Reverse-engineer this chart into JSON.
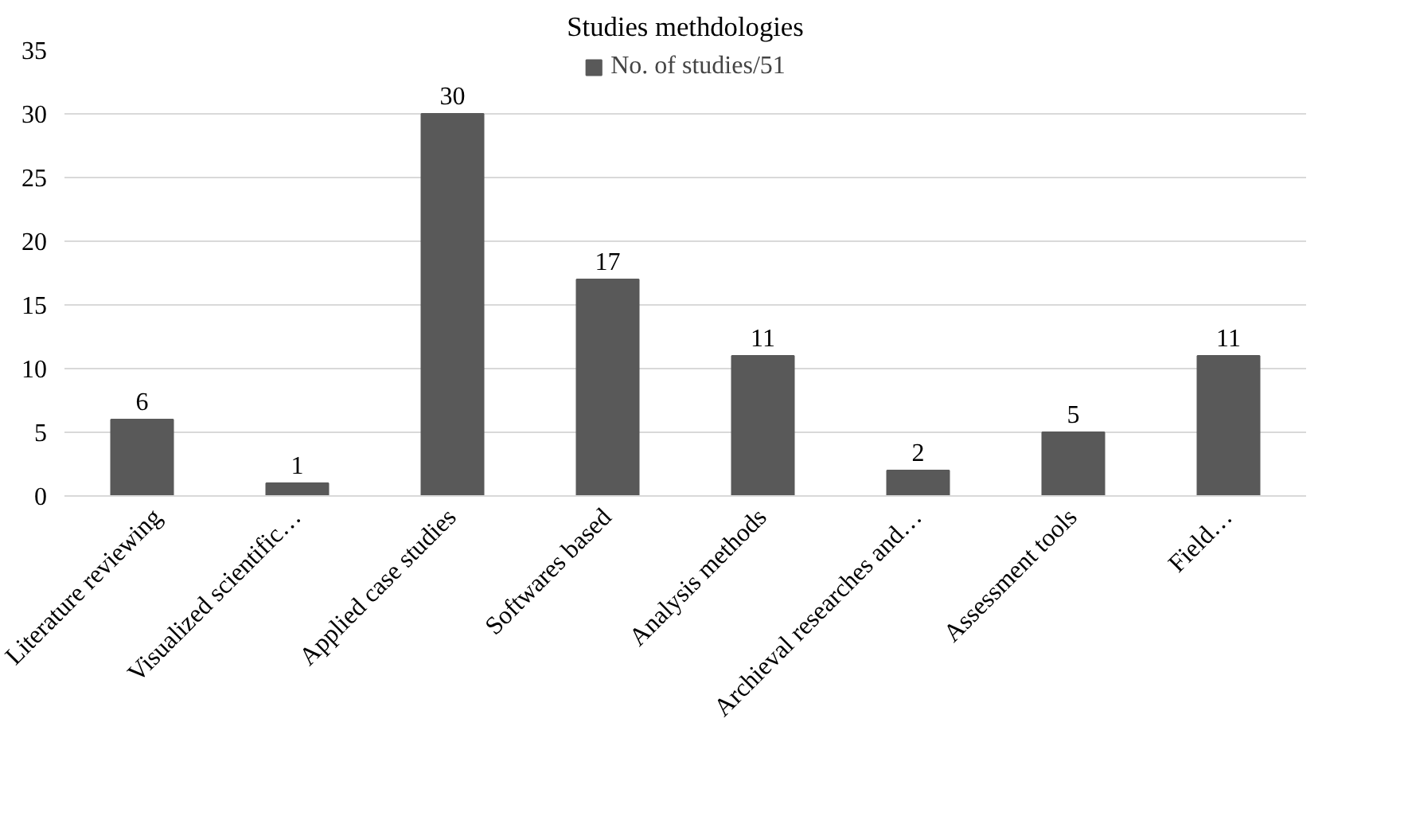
{
  "chart_data": {
    "type": "bar",
    "title": "Studies methdologies",
    "categories": [
      "Literature reviewing",
      "Visualized scientific…",
      "Applied case studies",
      "Softwares based",
      "Analysis methods",
      "Archieval researches and…",
      "Assessment tools",
      "Field…"
    ],
    "series": [
      {
        "name": "No. of studies/51",
        "color": "#595959",
        "values": [
          6,
          1,
          30,
          17,
          11,
          2,
          5,
          11
        ]
      }
    ],
    "ylim": [
      0,
      35
    ],
    "yticks": [
      0,
      5,
      10,
      15,
      20,
      25,
      30,
      35
    ],
    "grid": "y",
    "legend": "top",
    "data_labels": true
  }
}
